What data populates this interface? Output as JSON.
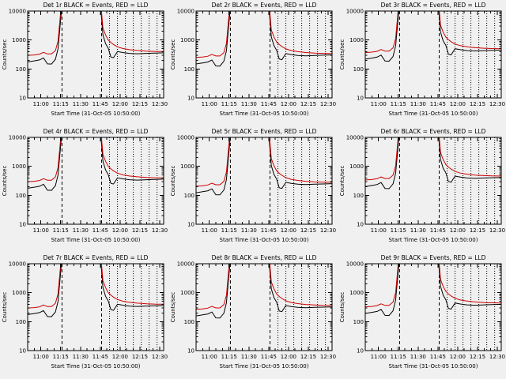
{
  "page": {
    "background": "#f0f0f0",
    "description": "3x3 grid of detector count-rate time plots"
  },
  "chart_data": {
    "type": "line",
    "grid": {
      "rows": 3,
      "cols": 3
    },
    "xlabel": "Start Time (31-Oct-05 10:50:00)",
    "ylabel": "Counts/sec",
    "x_axis": {
      "unit": "minutes since 10:50",
      "range_minutes": [
        0,
        103
      ],
      "major_ticks": [
        {
          "t": 10,
          "label": "11:00"
        },
        {
          "t": 25,
          "label": "11:15"
        },
        {
          "t": 40,
          "label": "11:30"
        },
        {
          "t": 55,
          "label": "11:45"
        },
        {
          "t": 70,
          "label": "12:00"
        },
        {
          "t": 85,
          "label": "12:15"
        },
        {
          "t": 100,
          "label": "12:30"
        }
      ],
      "minor_tick_step": 5
    },
    "y_axis": {
      "scale": "log",
      "range": [
        10,
        10000
      ],
      "major_ticks": [
        {
          "v": 10,
          "label": "10"
        },
        {
          "v": 100,
          "label": "100"
        },
        {
          "v": 1000,
          "label": "1000"
        },
        {
          "v": 10000,
          "label": "10000"
        }
      ]
    },
    "vlines": {
      "dashed_t": [
        26,
        56
      ],
      "dotted_t": [
        62,
        68,
        74,
        80,
        86,
        92,
        98
      ]
    },
    "x_minutes": [
      0,
      5,
      9,
      12,
      15,
      18,
      21,
      23,
      25,
      27,
      30,
      35,
      40,
      45,
      50,
      53,
      55,
      57,
      59,
      61,
      63,
      65,
      68,
      72,
      77,
      83,
      90,
      96,
      103
    ],
    "series_base": {
      "note": "values above 10000 are off-scale (clipped at plot top); per-panel values = base * y_scale",
      "events_y": [
        175,
        190,
        205,
        240,
        150,
        148,
        215,
        500,
        5000,
        50000,
        90000,
        90000,
        90000,
        90000,
        90000,
        70000,
        20000,
        1500,
        750,
        520,
        260,
        245,
        400,
        370,
        345,
        335,
        345,
        352,
        360
      ],
      "lld_y": [
        295,
        305,
        325,
        375,
        330,
        330,
        430,
        900,
        9000,
        65000,
        100000,
        100000,
        100000,
        100000,
        100000,
        80000,
        30000,
        2600,
        1500,
        1000,
        820,
        700,
        580,
        510,
        465,
        435,
        415,
        405,
        400
      ]
    },
    "series_meta": [
      {
        "name": "Events",
        "color": "#000000"
      },
      {
        "name": "LLD",
        "color": "#cc0000"
      }
    ],
    "panels": [
      {
        "title": "Det 1r BLACK = Events, RED = LLD",
        "y_scale": 1.0
      },
      {
        "title": "Det 2r BLACK = Events, RED = LLD",
        "y_scale": 0.85
      },
      {
        "title": "Det 3r BLACK = Events, RED = LLD",
        "y_scale": 1.25
      },
      {
        "title": "Det 4r BLACK = Events, RED = LLD",
        "y_scale": 1.0
      },
      {
        "title": "Det 5r BLACK = Events, RED = LLD",
        "y_scale": 0.7
      },
      {
        "title": "Det 6r BLACK = Events, RED = LLD",
        "y_scale": 1.15
      },
      {
        "title": "Det 7r BLACK = Events, RED = LLD",
        "y_scale": 1.0
      },
      {
        "title": "Det 8r BLACK = Events, RED = LLD",
        "y_scale": 0.9
      },
      {
        "title": "Det 9r BLACK = Events, RED = LLD",
        "y_scale": 1.1
      }
    ]
  }
}
